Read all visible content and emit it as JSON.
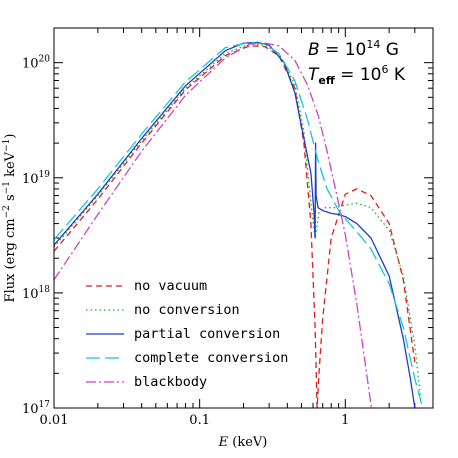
{
  "chart_data": {
    "type": "line",
    "xscale": "log",
    "yscale": "log",
    "xlim": [
      0.01,
      4
    ],
    "ylim": [
      1e+17,
      2e+20
    ],
    "xlabel": {
      "var": "E",
      "unit": " (keV)"
    },
    "ylabel": {
      "prefix": "Flux (erg cm",
      "e1": "−2",
      "mid1": " s",
      "e2": "−1",
      "mid2": " keV",
      "e3": "−1",
      "suffix": ")"
    },
    "x_ticks": [
      {
        "value": 0.01,
        "label": "0.01"
      },
      {
        "value": 0.1,
        "label": "0.1"
      },
      {
        "value": 1,
        "label": "1"
      }
    ],
    "y_ticks": [
      {
        "value": 1e+17,
        "base": "10",
        "exp": "17"
      },
      {
        "value": 1e+18,
        "base": "10",
        "exp": "18"
      },
      {
        "value": 1e+19,
        "base": "10",
        "exp": "19"
      },
      {
        "value": 1e+20,
        "base": "10",
        "exp": "20"
      }
    ],
    "annotations": [
      {
        "var": "B",
        "eq": " = ",
        "base": "10",
        "exp": "14",
        "unit": " G"
      },
      {
        "var": "T",
        "sub": "eff",
        "eq": " = ",
        "base": "10",
        "exp": "6",
        "unit": " K"
      }
    ],
    "legend_position": "bottom-left",
    "series": [
      {
        "name": "no vacuum",
        "color": "#e41a1c",
        "dash": "6,4",
        "x": [
          0.01,
          0.02,
          0.04,
          0.08,
          0.15,
          0.22,
          0.28,
          0.35,
          0.45,
          0.52,
          0.58,
          0.62,
          0.64,
          0.66,
          0.7,
          0.8,
          1.0,
          1.2,
          1.5,
          2.0,
          2.5,
          3.0
        ],
        "y": [
          2.3e+18,
          6.5e+18,
          2e+19,
          5.8e+19,
          1.15e+20,
          1.4e+20,
          1.38e+20,
          1.15e+20,
          6e+19,
          2e+19,
          4e+18,
          5e+17,
          1e+17,
          2e+17,
          6e+17,
          3e+18,
          7.2e+18,
          8e+18,
          7e+18,
          4e+18,
          1.3e+18,
          2.5e+17
        ]
      },
      {
        "name": "no conversion",
        "color": "#22aa22",
        "dash": "1.5,3",
        "x": [
          0.01,
          0.02,
          0.04,
          0.08,
          0.15,
          0.22,
          0.28,
          0.35,
          0.45,
          0.52,
          0.58,
          0.62,
          0.66,
          0.72,
          0.85,
          1.0,
          1.2,
          1.5,
          2.0,
          2.5,
          3.0,
          3.3
        ],
        "y": [
          2.5e+18,
          7e+18,
          2.1e+19,
          6e+19,
          1.2e+20,
          1.45e+20,
          1.42e+20,
          1.2e+20,
          6.5e+19,
          2.5e+19,
          6e+18,
          3e+18,
          5e+18,
          5.5e+18,
          5.5e+18,
          5.8e+18,
          6e+18,
          5.5e+18,
          3.5e+18,
          1.4e+18,
          3.5e+17,
          1.2e+17
        ]
      },
      {
        "name": "partial conversion",
        "color": "#1f3dcc",
        "dash": "",
        "x": [
          0.01,
          0.02,
          0.04,
          0.08,
          0.15,
          0.2,
          0.25,
          0.3,
          0.38,
          0.45,
          0.52,
          0.58,
          0.61,
          0.62,
          0.625,
          0.63,
          0.65,
          0.7,
          0.8,
          0.9,
          1.0,
          1.2,
          1.5,
          2.0,
          2.5,
          2.8,
          3.0
        ],
        "y": [
          2.6e+18,
          7.2e+18,
          2.2e+19,
          6.3e+19,
          1.27e+20,
          1.48e+20,
          1.5e+20,
          1.42e+20,
          1e+20,
          5.5e+19,
          2.2e+19,
          1.1e+19,
          5e+18,
          3e+18,
          2e+19,
          7e+18,
          5.5e+18,
          5.2e+18,
          4.9e+18,
          4.8e+18,
          4.6e+18,
          4e+18,
          3e+18,
          1.4e+18,
          4e+17,
          1.8e+17,
          1e+17
        ]
      },
      {
        "name": "complete conversion",
        "color": "#18c6d6",
        "dash": "14,5",
        "x": [
          0.01,
          0.02,
          0.04,
          0.08,
          0.15,
          0.22,
          0.28,
          0.35,
          0.45,
          0.55,
          0.65,
          0.75,
          0.9,
          1.0,
          1.2,
          1.5,
          2.0,
          2.5,
          3.0,
          3.4
        ],
        "y": [
          2.9e+18,
          8e+18,
          2.4e+19,
          6.8e+19,
          1.35e+20,
          1.5e+20,
          1.45e+20,
          1.2e+20,
          7e+19,
          3.2e+19,
          1.4e+19,
          8e+18,
          5.2e+18,
          4.4e+18,
          3.4e+18,
          2.4e+18,
          1.2e+18,
          5e+17,
          1.8e+17,
          1e+17
        ]
      },
      {
        "name": "blackbody",
        "color": "#cc44cc",
        "dash": "10,3,2,3",
        "x": [
          0.01,
          0.02,
          0.04,
          0.08,
          0.15,
          0.22,
          0.28,
          0.35,
          0.45,
          0.55,
          0.65,
          0.75,
          0.9,
          1.0,
          1.2,
          1.4,
          1.6
        ],
        "y": [
          1.3e+18,
          4.8e+18,
          1.7e+19,
          5.2e+19,
          1.1e+20,
          1.45e+20,
          1.48e+20,
          1.4e+20,
          1.05e+20,
          6.4e+19,
          3.5e+19,
          1.7e+19,
          6e+18,
          3.2e+18,
          8e+17,
          2e+17,
          6e+16
        ]
      }
    ]
  }
}
